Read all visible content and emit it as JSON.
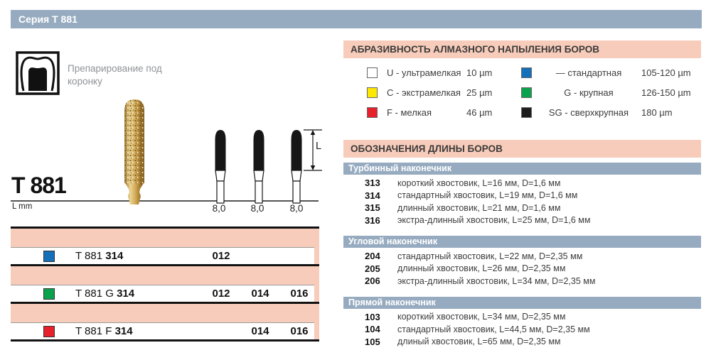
{
  "series_header": "Серия Т 881",
  "application": {
    "label": "Препарирование под коронку"
  },
  "product": {
    "name": "T 881",
    "length_unit": "L mm",
    "dimension_label": "L",
    "shank_lengths": [
      "8,0",
      "8,0",
      "8,0"
    ]
  },
  "variants": {
    "rows": [
      {
        "square_color": "#1470b8",
        "prefix": "T 881 ",
        "bold": "314",
        "sizes": [
          "012",
          "",
          ""
        ]
      },
      {
        "square_color": "#0ba24d",
        "prefix": "T 881 G ",
        "bold": "314",
        "sizes": [
          "012",
          "014",
          "016"
        ]
      },
      {
        "square_color": "#e7202b",
        "prefix": "T 881 F ",
        "bold": "314",
        "sizes": [
          "",
          "014",
          "016"
        ]
      }
    ]
  },
  "abrasiveness": {
    "title": "АБРАЗИВНОСТЬ АЛМАЗНОГО НАПЫЛЕНИЯ БОРОВ",
    "items_left": [
      {
        "color": "#ffffff",
        "label": "U - ультрамелкая",
        "value": "10 µm"
      },
      {
        "color": "#ffe800",
        "label": "C - экстрамелкая",
        "value": "25 µm"
      },
      {
        "color": "#e7202b",
        "label": "F - мелкая",
        "value": "46 µm"
      }
    ],
    "items_right": [
      {
        "color": "#1470b8",
        "label": "— стандартная",
        "value": "105-120 µm"
      },
      {
        "color": "#0ba24d",
        "label": "G - крупная",
        "value": "126-150 µm"
      },
      {
        "color": "#1d1d1d",
        "label": "SG - сверхкрупная",
        "value": "180 µm"
      }
    ]
  },
  "length_designations": {
    "title": "ОБОЗНАЧЕНИЯ ДЛИНЫ БОРОВ",
    "groups": [
      {
        "name": "Турбинный наконечник",
        "items": [
          {
            "code": "313",
            "desc": "короткий хвостовик, L=16 мм, D=1,6 мм"
          },
          {
            "code": "314",
            "desc": "стандартный хвостовик, L=19 мм, D=1,6 мм"
          },
          {
            "code": "315",
            "desc": "длинный хвостовик, L=21 мм, D=1,6 мм"
          },
          {
            "code": "316",
            "desc": "экстра-длинный хвостовик, L=25 мм, D=1,6 мм"
          }
        ]
      },
      {
        "name": "Угловой наконечник",
        "items": [
          {
            "code": "204",
            "desc": "стандартный хвостовик, L=22 мм, D=2,35 мм"
          },
          {
            "code": "205",
            "desc": "длинный хвостовик, L=26 мм, D=2,35 мм"
          },
          {
            "code": "206",
            "desc": "экстра-длинный хвостовик, L=34 мм, D=2,35 мм"
          }
        ]
      },
      {
        "name": "Прямой наконечник",
        "items": [
          {
            "code": "103",
            "desc": "короткий хвостовик, L=34 мм, D=2,35 мм"
          },
          {
            "code": "104",
            "desc": "стандартный хвостовик, L=44,5 мм, D=2,35 мм"
          },
          {
            "code": "105",
            "desc": "длиный хвостовик, L=65 мм, D=2,35 мм"
          }
        ]
      }
    ]
  },
  "colors": {
    "band_blue": "#97abc0",
    "band_salmon": "#f8ccba",
    "blue": "#1470b8",
    "green": "#0ba24d",
    "red": "#e7202b",
    "yellow": "#ffe800",
    "black": "#1d1d1d"
  }
}
